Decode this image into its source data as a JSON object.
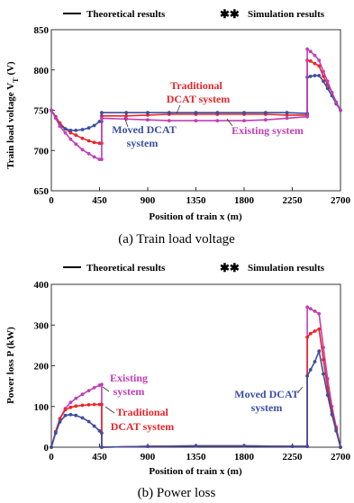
{
  "chart_data": [
    {
      "type": "line",
      "legend": {
        "theoretical": "Theoretical results",
        "simulation": "Simulation results",
        "placement": "top"
      },
      "ylabel": "Train load voltage V",
      "ylabel_sub": "T",
      "ylabel_unit": "(V)",
      "xlabel": "Position of train x (m)",
      "caption": "(a) Train load voltage",
      "xlim": [
        0,
        2700
      ],
      "ylim": [
        650,
        850
      ],
      "xticks": [
        "0",
        "450",
        "900",
        "1350",
        "1800",
        "2250",
        "2700"
      ],
      "xtick_values": [
        0,
        450,
        900,
        1350,
        1800,
        2250,
        2700
      ],
      "yticks": [
        "650",
        "700",
        "750",
        "800",
        "850"
      ],
      "ytick_values": [
        650,
        700,
        750,
        800,
        850
      ],
      "grid": false,
      "series": [
        {
          "name": "Traditional DCAT system",
          "color": "#e8262a",
          "annotation": [
            "Traditional",
            "DCAT system"
          ],
          "x": [
            0,
            40,
            80,
            130,
            180,
            230,
            290,
            350,
            400,
            450,
            470,
            470,
            700,
            900,
            1100,
            1350,
            1550,
            1800,
            2000,
            2200,
            2390,
            2390,
            2420,
            2460,
            2500,
            2540,
            2580,
            2620,
            2660,
            2700
          ],
          "y": [
            750,
            742,
            734,
            727,
            722,
            719,
            715,
            712,
            710,
            709,
            709,
            743,
            743,
            744,
            745,
            745,
            745,
            745,
            745,
            744,
            744,
            812,
            811,
            808,
            805,
            792,
            782,
            772,
            760,
            750
          ]
        },
        {
          "name": "Moved DCAT system",
          "color": "#3a4ea0",
          "annotation": [
            "Moved DCAT",
            "system"
          ],
          "x": [
            0,
            40,
            80,
            130,
            180,
            230,
            290,
            350,
            400,
            450,
            470,
            470,
            700,
            900,
            1100,
            1350,
            1550,
            1800,
            2000,
            2200,
            2390,
            2390,
            2420,
            2460,
            2500,
            2540,
            2580,
            2620,
            2660,
            2700
          ],
          "y": [
            750,
            741,
            731,
            727,
            725,
            725,
            726,
            728,
            731,
            736,
            736,
            747,
            747,
            747,
            747,
            747,
            747,
            747,
            747,
            747,
            746,
            791,
            792,
            793,
            793,
            786,
            777,
            768,
            758,
            750
          ]
        },
        {
          "name": "Existing system",
          "color": "#c13fb5",
          "annotation": [
            "Existing system"
          ],
          "x": [
            0,
            40,
            80,
            130,
            180,
            230,
            290,
            350,
            400,
            450,
            470,
            470,
            700,
            900,
            1100,
            1350,
            1550,
            1800,
            2000,
            2200,
            2390,
            2390,
            2420,
            2460,
            2500,
            2540,
            2580,
            2620,
            2660,
            2700
          ],
          "y": [
            750,
            740,
            730,
            722,
            714,
            708,
            701,
            696,
            692,
            689,
            689,
            740,
            739,
            738,
            737,
            737,
            737,
            737,
            738,
            740,
            742,
            826,
            823,
            818,
            812,
            798,
            786,
            772,
            760,
            750
          ]
        }
      ]
    },
    {
      "type": "line",
      "legend": {
        "theoretical": "Theoretical results",
        "simulation": "Simulation results",
        "placement": "top"
      },
      "ylabel": "Power loss P (kW)",
      "xlabel": "Position of train x (m)",
      "caption": "(b) Power loss",
      "xlim": [
        0,
        2700
      ],
      "ylim": [
        0,
        400
      ],
      "xticks": [
        "0",
        "450",
        "900",
        "1350",
        "1800",
        "2250",
        "2700"
      ],
      "xtick_values": [
        0,
        450,
        900,
        1350,
        1800,
        2250,
        2700
      ],
      "yticks": [
        "0",
        "100",
        "200",
        "300",
        "400"
      ],
      "ytick_values": [
        0,
        100,
        200,
        300,
        400
      ],
      "grid": false,
      "series": [
        {
          "name": "Existing system",
          "color": "#c13fb5",
          "annotation": [
            "Existing",
            "system"
          ],
          "x": [
            0,
            40,
            80,
            130,
            180,
            230,
            290,
            350,
            400,
            450,
            470,
            470,
            900,
            1350,
            1800,
            2250,
            2390,
            2390,
            2420,
            2460,
            2500,
            2540,
            2580,
            2620,
            2660,
            2700
          ],
          "y": [
            0,
            38,
            70,
            95,
            110,
            120,
            130,
            139,
            146,
            152,
            154,
            0,
            2,
            3,
            3,
            2,
            2,
            344,
            340,
            334,
            328,
            245,
            168,
            100,
            50,
            0
          ]
        },
        {
          "name": "Traditional DCAT system",
          "color": "#e8262a",
          "annotation": [
            "Traditional",
            "DCAT system"
          ],
          "x": [
            0,
            40,
            80,
            130,
            180,
            230,
            290,
            350,
            400,
            450,
            470,
            470,
            900,
            1350,
            1800,
            2250,
            2390,
            2390,
            2420,
            2460,
            2500,
            2540,
            2580,
            2620,
            2660,
            2700
          ],
          "y": [
            0,
            38,
            70,
            92,
            98,
            101,
            103,
            104,
            105,
            105,
            105,
            0,
            2,
            3,
            3,
            2,
            2,
            270,
            279,
            285,
            290,
            215,
            145,
            88,
            45,
            0
          ]
        },
        {
          "name": "Moved DCAT system",
          "color": "#3a4ea0",
          "annotation": [
            "Moved DCAT",
            "system"
          ],
          "x": [
            0,
            40,
            80,
            130,
            180,
            230,
            290,
            350,
            400,
            450,
            470,
            470,
            900,
            1350,
            1800,
            2250,
            2390,
            2390,
            2420,
            2460,
            2500,
            2540,
            2580,
            2620,
            2660,
            2700
          ],
          "y": [
            0,
            35,
            62,
            78,
            80,
            78,
            72,
            63,
            52,
            40,
            35,
            0,
            2,
            3,
            3,
            2,
            2,
            175,
            190,
            210,
            236,
            180,
            128,
            80,
            40,
            0
          ]
        }
      ]
    }
  ]
}
